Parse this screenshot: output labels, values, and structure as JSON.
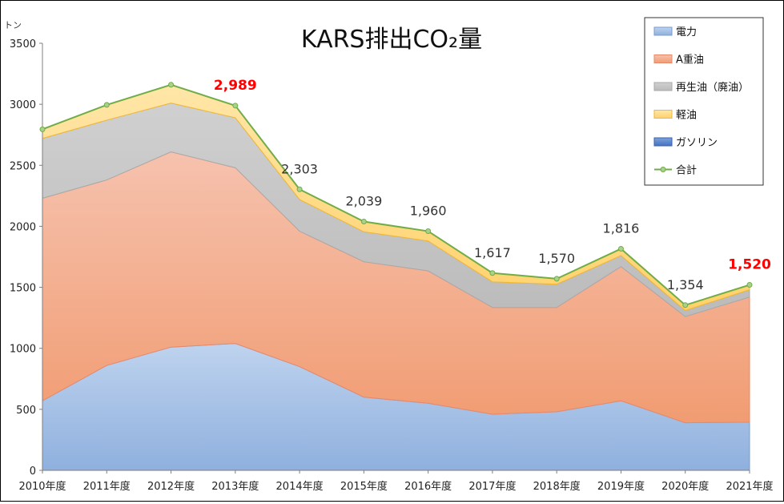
{
  "chart_data": {
    "type": "area",
    "title": "KARS排出CO₂量",
    "unit": "トン",
    "ylim": [
      0,
      3500
    ],
    "yticks": [
      0,
      500,
      1000,
      1500,
      2000,
      2500,
      3000,
      3500
    ],
    "categories": [
      "2010年度",
      "2011年度",
      "2012年度",
      "2013年度",
      "2014年度",
      "2015年度",
      "2016年度",
      "2017年度",
      "2018年度",
      "2019年度",
      "2020年度",
      "2021年度"
    ],
    "series": [
      {
        "name": "電力",
        "color": "#8FB4E0",
        "values": [
          570,
          860,
          1010,
          1040,
          850,
          600,
          550,
          460,
          480,
          570,
          390,
          395
        ]
      },
      {
        "name": "A重油",
        "color": "#F4A582",
        "values": [
          1660,
          1520,
          1600,
          1440,
          1110,
          1110,
          1085,
          875,
          855,
          1100,
          870,
          1025
        ]
      },
      {
        "name": "再生油（廃油）",
        "color": "#C4C4C4",
        "values": [
          490,
          490,
          400,
          410,
          260,
          245,
          245,
          210,
          190,
          90,
          50,
          60
        ]
      },
      {
        "name": "軽油",
        "color": "#FFD97A",
        "values": [
          75,
          125,
          150,
          99,
          83,
          84,
          80,
          72,
          45,
          56,
          44,
          40
        ]
      },
      {
        "name": "ガソリン",
        "color": "#4472C4",
        "values": [
          0,
          0,
          0,
          0,
          0,
          0,
          0,
          0,
          0,
          0,
          0,
          0
        ]
      }
    ],
    "total": {
      "name": "合計",
      "color": "#70AD47",
      "values": [
        2795,
        2995,
        3160,
        2989,
        2303,
        2039,
        1960,
        1617,
        1570,
        1816,
        1354,
        1520
      ]
    },
    "data_labels": [
      {
        "index": 3,
        "text": "2,989",
        "highlight": true
      },
      {
        "index": 4,
        "text": "2,303",
        "highlight": false
      },
      {
        "index": 5,
        "text": "2,039",
        "highlight": false
      },
      {
        "index": 6,
        "text": "1,960",
        "highlight": false
      },
      {
        "index": 7,
        "text": "1,617",
        "highlight": false
      },
      {
        "index": 8,
        "text": "1,570",
        "highlight": false
      },
      {
        "index": 9,
        "text": "1,816",
        "highlight": false
      },
      {
        "index": 10,
        "text": "1,354",
        "highlight": false
      },
      {
        "index": 11,
        "text": "1,520",
        "highlight": true
      }
    ],
    "legend": "top-right",
    "grid": false
  }
}
